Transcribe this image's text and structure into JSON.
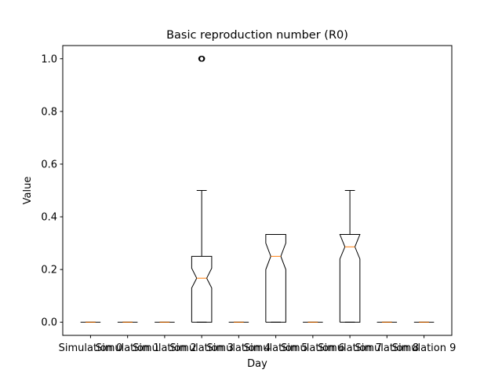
{
  "chart_data": {
    "type": "box",
    "title": "Basic reproduction number (R0)",
    "xlabel": "Day",
    "ylabel": "Value",
    "ylim": [
      -0.05,
      1.05
    ],
    "yticks": [
      0.0,
      0.2,
      0.4,
      0.6,
      0.8,
      1.0
    ],
    "ytick_labels": [
      "0.0",
      "0.2",
      "0.4",
      "0.6",
      "0.8",
      "1.0"
    ],
    "notched": true,
    "grid": false,
    "colors": {
      "box": "#000000",
      "median": "#ff7f0e",
      "background": "#ffffff"
    },
    "categories": [
      "Simulation 0",
      "Simulation 1",
      "Simulation 2",
      "Simulation 3",
      "Simulation 4",
      "Simulation 5",
      "Simulation 6",
      "Simulation 7",
      "Simulation 8",
      "Simulation 9"
    ],
    "series": [
      {
        "whislo": 0,
        "q1": 0,
        "med": 0,
        "q3": 0,
        "whishi": 0,
        "notch": [
          0,
          0
        ],
        "fliers": []
      },
      {
        "whislo": 0,
        "q1": 0,
        "med": 0,
        "q3": 0,
        "whishi": 0,
        "notch": [
          0,
          0
        ],
        "fliers": []
      },
      {
        "whislo": 0,
        "q1": 0,
        "med": 0,
        "q3": 0,
        "whishi": 0,
        "notch": [
          0,
          0
        ],
        "fliers": []
      },
      {
        "whislo": 0,
        "q1": 0,
        "med": 0.167,
        "q3": 0.25,
        "whishi": 0.5,
        "notch": [
          0.13,
          0.205
        ],
        "fliers": [
          1.0,
          1.0,
          1.0
        ]
      },
      {
        "whislo": 0,
        "q1": 0,
        "med": 0,
        "q3": 0,
        "whishi": 0,
        "notch": [
          0,
          0
        ],
        "fliers": []
      },
      {
        "whislo": 0,
        "q1": 0,
        "med": 0.25,
        "q3": 0.333,
        "whishi": 0.333,
        "notch": [
          0.2,
          0.3
        ],
        "fliers": []
      },
      {
        "whislo": 0,
        "q1": 0,
        "med": 0,
        "q3": 0,
        "whishi": 0,
        "notch": [
          0,
          0
        ],
        "fliers": []
      },
      {
        "whislo": 0,
        "q1": 0,
        "med": 0.286,
        "q3": 0.333,
        "whishi": 0.5,
        "notch": [
          0.24,
          0.333
        ],
        "fliers": []
      },
      {
        "whislo": 0,
        "q1": 0,
        "med": 0,
        "q3": 0,
        "whishi": 0,
        "notch": [
          0,
          0
        ],
        "fliers": []
      },
      {
        "whislo": 0,
        "q1": 0,
        "med": 0,
        "q3": 0,
        "whishi": 0,
        "notch": [
          0,
          0
        ],
        "fliers": []
      }
    ]
  }
}
